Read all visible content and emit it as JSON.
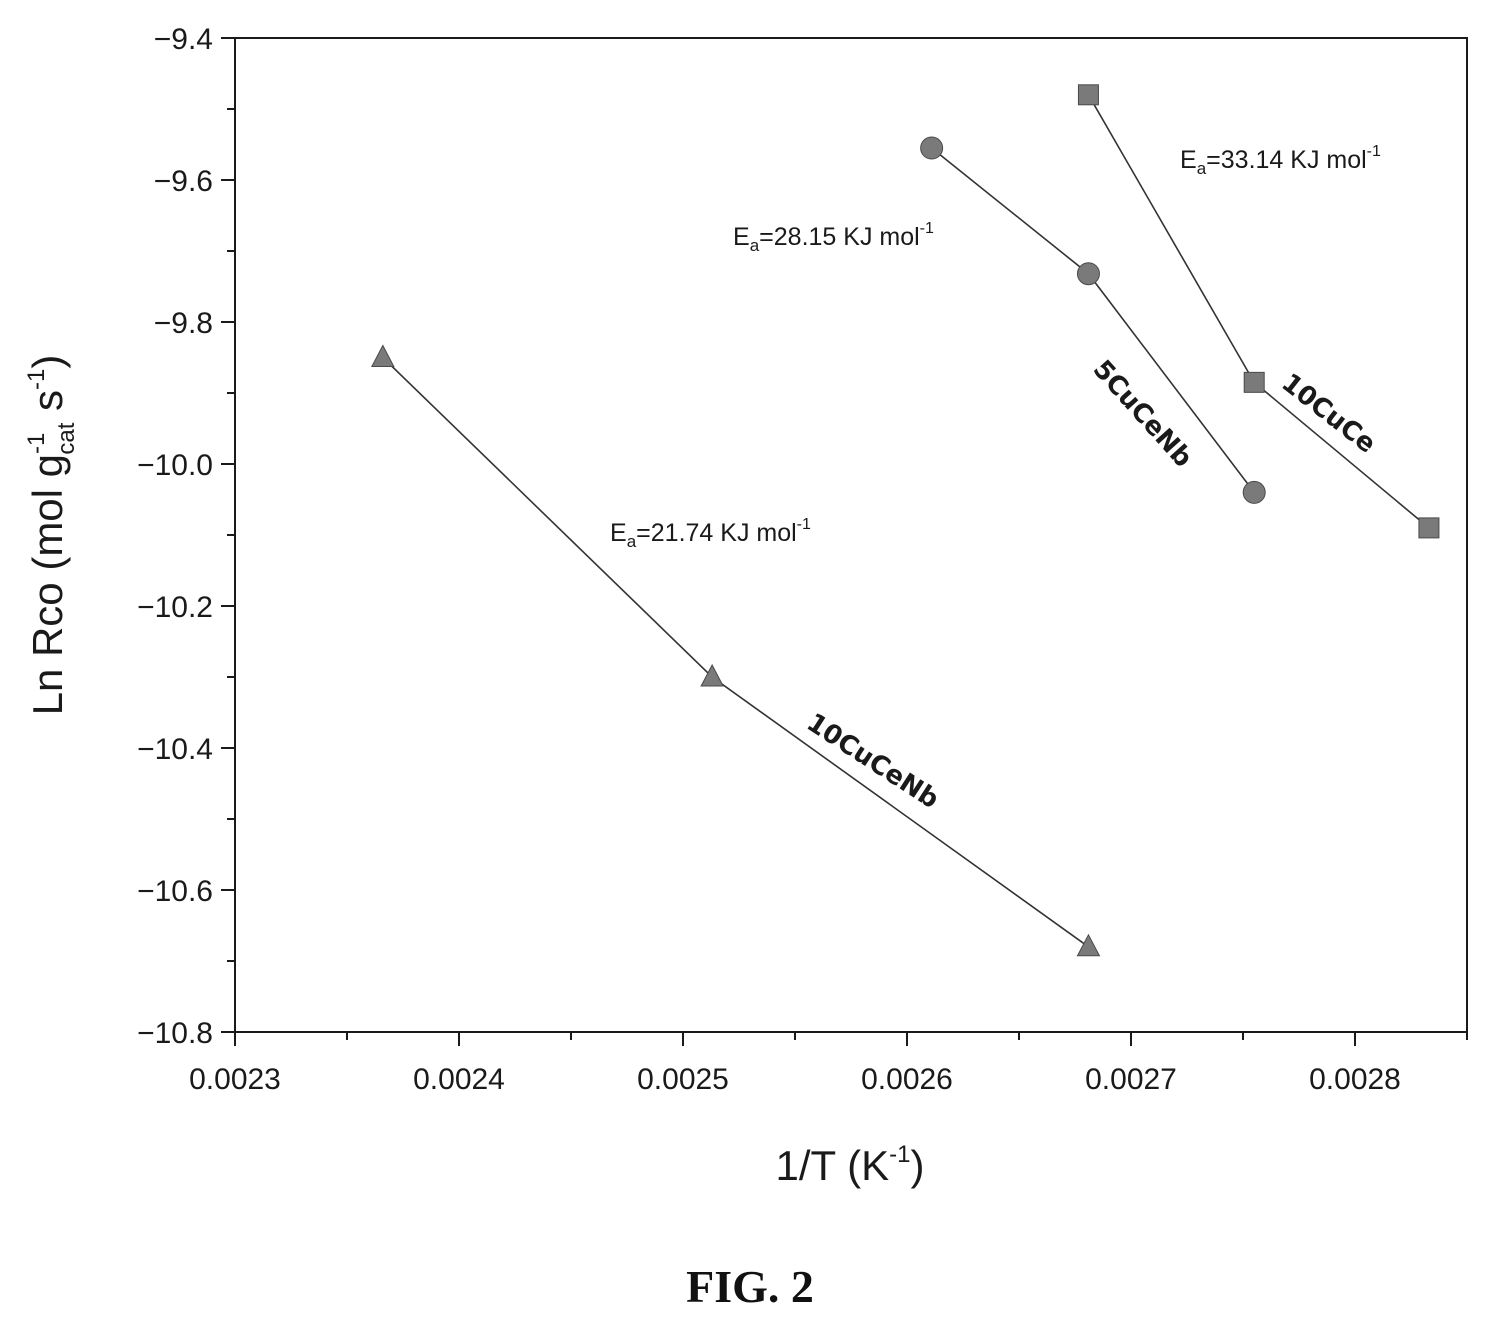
{
  "figure_caption": "FIG. 2",
  "chart_data": {
    "type": "line",
    "xlabel": "1/T (K",
    "xlabel_sup": "-1",
    "xlabel_close": ")",
    "ylabel": {
      "part1": "Ln Rco (mol g",
      "sup1": "-1",
      "sub1": "cat",
      "part2": " s",
      "sup2": "-1",
      "part3": ")"
    },
    "xlim": [
      0.0023,
      0.00285
    ],
    "ylim": [
      -10.8,
      -9.4
    ],
    "x_major_ticks": [
      0.0023,
      0.0024,
      0.0025,
      0.0026,
      0.0027,
      0.0028
    ],
    "x_tick_labels": [
      "0.0023",
      "0.0024",
      "0.0025",
      "0.0026",
      "0.0027",
      "0.0028"
    ],
    "x_minor_ticks": [
      0.00235,
      0.00245,
      0.00255,
      0.00265,
      0.00275,
      0.00285
    ],
    "y_major_ticks": [
      -9.4,
      -9.6,
      -9.8,
      -10.0,
      -10.2,
      -10.4,
      -10.6,
      -10.8
    ],
    "y_tick_labels": [
      "−9.4",
      "−9.6",
      "−9.8",
      "−10.0",
      "−10.2",
      "−10.4",
      "−10.6",
      "−10.8"
    ],
    "y_minor_ticks": [
      -9.5,
      -9.7,
      -9.9,
      -10.1,
      -10.3,
      -10.5,
      -10.7
    ],
    "grid": false,
    "legend": "none",
    "series": [
      {
        "name": "10CuCe",
        "marker": "square",
        "x": [
          0.002681,
          0.002755,
          0.002833
        ],
        "y": [
          -9.48,
          -9.885,
          -10.09
        ],
        "annotation": {
          "base": "E",
          "sub": "a",
          "rest": "=33.14 KJ mol",
          "sup": "-1"
        }
      },
      {
        "name": "5CuCeNb",
        "marker": "circle",
        "x": [
          0.002611,
          0.002681,
          0.002755
        ],
        "y": [
          -9.555,
          -9.732,
          -10.04
        ],
        "annotation": {
          "base": "E",
          "sub": "a",
          "rest": "=28.15 KJ mol",
          "sup": "-1"
        }
      },
      {
        "name": "10CuCeNb",
        "marker": "triangle",
        "x": [
          0.002366,
          0.002513,
          0.002681
        ],
        "y": [
          -9.85,
          -10.3,
          -10.68
        ],
        "annotation": {
          "base": "E",
          "sub": "a",
          "rest": "=21.74 KJ mol",
          "sup": "-1"
        }
      }
    ],
    "marker_color": "#7a7a7a",
    "line_color": "#333333"
  }
}
